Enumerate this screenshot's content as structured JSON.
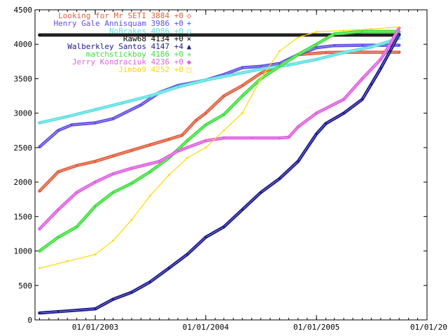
{
  "chart_data": {
    "type": "line",
    "xlim": [
      "2002-06-16",
      "2006-01-01"
    ],
    "ylim": [
      0,
      4500
    ],
    "y_ticks": [
      0,
      500,
      1000,
      1500,
      2000,
      2500,
      3000,
      3500,
      4000,
      4500
    ],
    "x_ticks": [
      {
        "date": "2003-01-01",
        "label": "01/01/2003"
      },
      {
        "date": "2004-01-01",
        "label": "01/01/2004"
      },
      {
        "date": "2005-01-01",
        "label": "01/01/2005"
      },
      {
        "date": "2006-01-01",
        "label": "01/01/20"
      }
    ],
    "grid": false,
    "legend_position": "top-right",
    "series": [
      {
        "name": "Looking for Mr  SETI",
        "legend": "Looking for Mr  SETI 3884 +0",
        "marker": "◇",
        "color": "#e06040",
        "points": [
          [
            "2002-07-01",
            1870
          ],
          [
            "2002-09-01",
            2150
          ],
          [
            "2002-11-01",
            2240
          ],
          [
            "2003-01-01",
            2300
          ],
          [
            "2003-03-01",
            2380
          ],
          [
            "2003-05-01",
            2460
          ],
          [
            "2003-07-01",
            2540
          ],
          [
            "2003-09-01",
            2620
          ],
          [
            "2003-10-15",
            2680
          ],
          [
            "2003-12-01",
            2900
          ],
          [
            "2004-01-01",
            3000
          ],
          [
            "2004-03-01",
            3250
          ],
          [
            "2004-05-01",
            3400
          ],
          [
            "2004-07-01",
            3580
          ],
          [
            "2004-09-01",
            3700
          ],
          [
            "2004-11-01",
            3850
          ],
          [
            "2005-02-01",
            3880
          ],
          [
            "2005-04-01",
            3884
          ],
          [
            "2005-10-01",
            3884
          ]
        ]
      },
      {
        "name": "Henry Gale   Annisquam",
        "legend": "Henry Gale   Annisquam 3986 +0",
        "marker": "+",
        "color": "#6050e0",
        "points": [
          [
            "2002-07-01",
            2510
          ],
          [
            "2002-09-01",
            2750
          ],
          [
            "2002-10-15",
            2830
          ],
          [
            "2003-01-01",
            2860
          ],
          [
            "2003-03-01",
            2920
          ],
          [
            "2003-06-01",
            3120
          ],
          [
            "2003-08-01",
            3300
          ],
          [
            "2003-10-01",
            3400
          ],
          [
            "2004-01-01",
            3480
          ],
          [
            "2004-03-01",
            3560
          ],
          [
            "2004-05-01",
            3660
          ],
          [
            "2004-07-01",
            3680
          ],
          [
            "2004-09-01",
            3720
          ],
          [
            "2004-11-01",
            3850
          ],
          [
            "2005-01-01",
            3950
          ],
          [
            "2005-03-01",
            3980
          ],
          [
            "2005-06-01",
            3986
          ],
          [
            "2005-10-01",
            3986
          ]
        ]
      },
      {
        "name": "NoBrakes",
        "legend": "NoBrakes 4086 +0",
        "marker": "○",
        "color": "#60e0e0",
        "points": [
          [
            "2002-07-01",
            2860
          ],
          [
            "2002-10-01",
            2950
          ],
          [
            "2003-01-01",
            3050
          ],
          [
            "2003-04-01",
            3150
          ],
          [
            "2003-07-01",
            3250
          ],
          [
            "2003-10-01",
            3380
          ],
          [
            "2004-01-01",
            3480
          ],
          [
            "2004-04-01",
            3560
          ],
          [
            "2004-07-01",
            3640
          ],
          [
            "2004-10-01",
            3700
          ],
          [
            "2005-01-01",
            3780
          ],
          [
            "2005-04-01",
            3880
          ],
          [
            "2005-07-01",
            3960
          ],
          [
            "2005-10-01",
            4086
          ]
        ]
      },
      {
        "name": "Raw68",
        "legend": "Raw68 4134 +0",
        "marker": "×",
        "color": "#000000",
        "points": [
          [
            "2002-07-01",
            4134
          ],
          [
            "2005-10-01",
            4134
          ]
        ]
      },
      {
        "name": "Walberkley Santos",
        "legend": "Walberkley Santos 4147 +4",
        "marker": "▲",
        "color": "#1c1c8c",
        "points": [
          [
            "2002-07-01",
            100
          ],
          [
            "2002-09-01",
            120
          ],
          [
            "2003-01-01",
            160
          ],
          [
            "2003-03-01",
            300
          ],
          [
            "2003-05-01",
            400
          ],
          [
            "2003-07-01",
            550
          ],
          [
            "2003-09-01",
            750
          ],
          [
            "2003-11-01",
            950
          ],
          [
            "2004-01-01",
            1200
          ],
          [
            "2004-03-01",
            1350
          ],
          [
            "2004-05-01",
            1600
          ],
          [
            "2004-07-01",
            1850
          ],
          [
            "2004-09-01",
            2050
          ],
          [
            "2004-11-01",
            2300
          ],
          [
            "2005-01-01",
            2700
          ],
          [
            "2005-02-01",
            2850
          ],
          [
            "2005-04-01",
            3000
          ],
          [
            "2005-06-01",
            3200
          ],
          [
            "2005-07-01",
            3420
          ],
          [
            "2005-08-01",
            3650
          ],
          [
            "2005-09-01",
            3900
          ],
          [
            "2005-10-01",
            4147
          ]
        ]
      },
      {
        "name": "matchstickboy",
        "legend": "matchstickboy 4186 +0",
        "marker": "✳",
        "color": "#40e040",
        "points": [
          [
            "2002-07-01",
            1000
          ],
          [
            "2002-09-01",
            1200
          ],
          [
            "2002-11-01",
            1350
          ],
          [
            "2003-01-01",
            1650
          ],
          [
            "2003-03-01",
            1850
          ],
          [
            "2003-05-01",
            1980
          ],
          [
            "2003-07-01",
            2150
          ],
          [
            "2003-09-01",
            2350
          ],
          [
            "2003-11-01",
            2600
          ],
          [
            "2004-01-01",
            2830
          ],
          [
            "2004-03-01",
            2980
          ],
          [
            "2004-05-01",
            3250
          ],
          [
            "2004-07-01",
            3500
          ],
          [
            "2004-09-01",
            3680
          ],
          [
            "2004-11-01",
            3850
          ],
          [
            "2005-01-01",
            4000
          ],
          [
            "2005-03-01",
            4150
          ],
          [
            "2005-06-01",
            4186
          ],
          [
            "2005-10-01",
            4186
          ]
        ]
      },
      {
        "name": "Jerry Kondraciuk",
        "legend": "Jerry Kondraciuk 4236 +0",
        "marker": "◆",
        "color": "#e060e0",
        "points": [
          [
            "2002-07-01",
            1320
          ],
          [
            "2002-09-01",
            1600
          ],
          [
            "2002-11-01",
            1850
          ],
          [
            "2003-01-01",
            2000
          ],
          [
            "2003-03-01",
            2120
          ],
          [
            "2003-05-01",
            2200
          ],
          [
            "2003-08-01",
            2300
          ],
          [
            "2003-10-01",
            2450
          ],
          [
            "2004-01-01",
            2600
          ],
          [
            "2004-03-01",
            2640
          ],
          [
            "2004-06-01",
            2640
          ],
          [
            "2004-09-01",
            2640
          ],
          [
            "2004-10-01",
            2650
          ],
          [
            "2004-11-01",
            2800
          ],
          [
            "2005-01-01",
            3000
          ],
          [
            "2005-04-01",
            3200
          ],
          [
            "2005-06-01",
            3500
          ],
          [
            "2005-08-01",
            3780
          ],
          [
            "2005-09-01",
            4000
          ],
          [
            "2005-10-01",
            4236
          ]
        ]
      },
      {
        "name": "Jimbo9",
        "legend": "Jimbo9 4252 +0",
        "marker": "□",
        "color": "#ffd800",
        "points": [
          [
            "2002-07-01",
            750
          ],
          [
            "2002-10-01",
            850
          ],
          [
            "2003-01-01",
            950
          ],
          [
            "2003-03-01",
            1150
          ],
          [
            "2003-05-01",
            1450
          ],
          [
            "2003-07-01",
            1800
          ],
          [
            "2003-09-01",
            2100
          ],
          [
            "2003-11-01",
            2350
          ],
          [
            "2004-01-01",
            2500
          ],
          [
            "2004-03-01",
            2750
          ],
          [
            "2004-05-01",
            3000
          ],
          [
            "2004-07-01",
            3500
          ],
          [
            "2004-09-01",
            3900
          ],
          [
            "2004-11-01",
            4100
          ],
          [
            "2005-01-01",
            4180
          ],
          [
            "2005-04-01",
            4200
          ],
          [
            "2005-07-01",
            4220
          ],
          [
            "2005-10-01",
            4252
          ]
        ]
      }
    ]
  }
}
